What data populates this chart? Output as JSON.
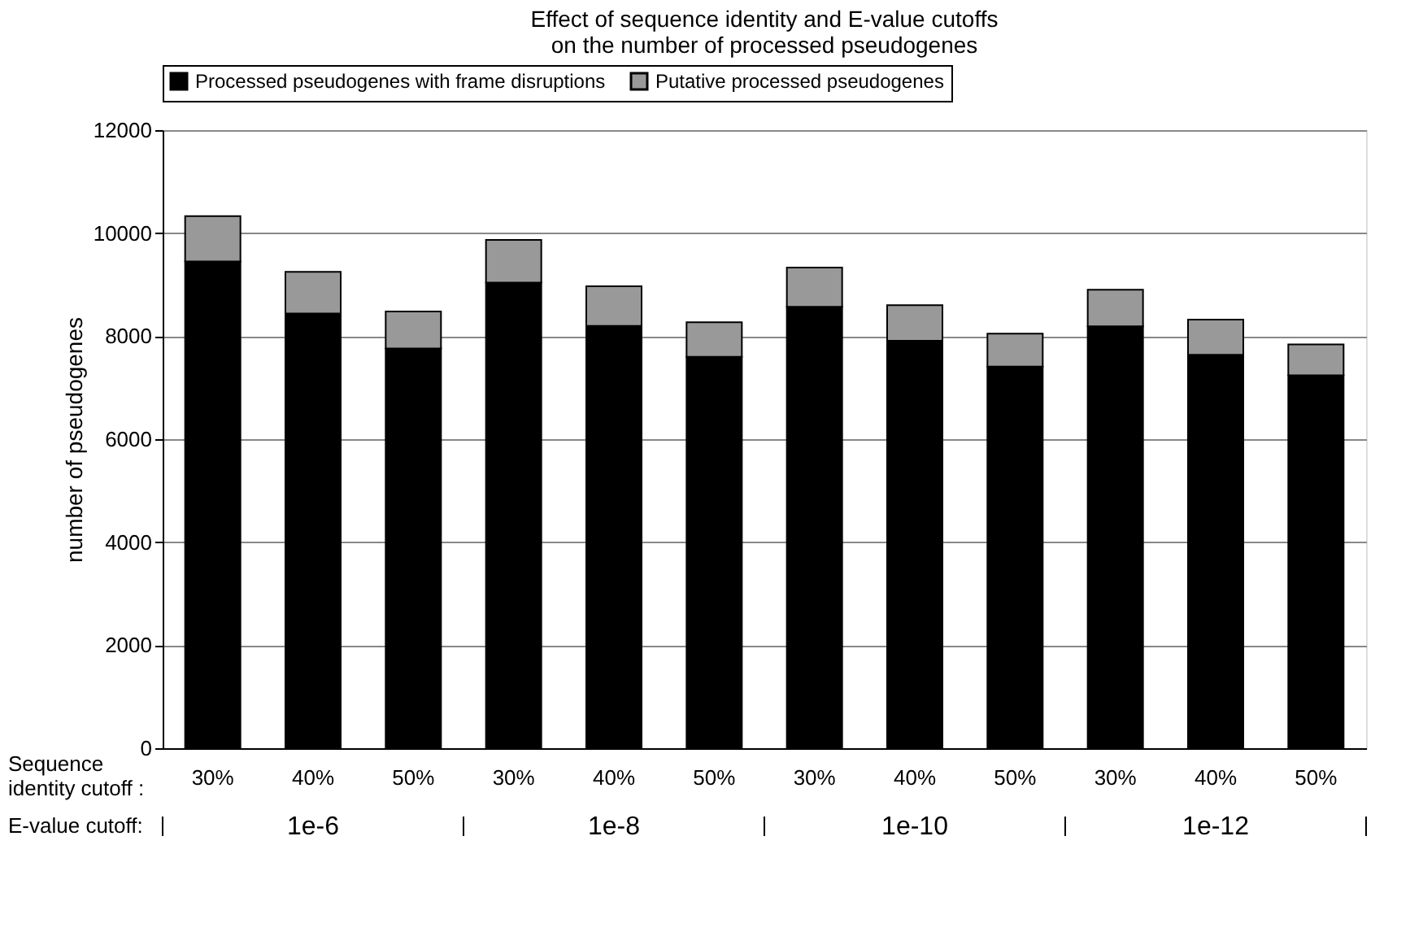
{
  "chart_data": {
    "type": "bar",
    "title": "Effect of sequence identity and E-value cutoffs\non the number of processed pseudogenes",
    "xlabel": "Sequence identity cutoff :",
    "ylabel": "number of pseudogenes",
    "categories": [
      "30%",
      "40%",
      "50%",
      "30%",
      "40%",
      "50%",
      "30%",
      "40%",
      "50%",
      "30%",
      "40%",
      "50%"
    ],
    "series": [
      {
        "name": "Processed pseudogenes with frame disruptions",
        "color": "#000000",
        "values": [
          9450,
          8440,
          7760,
          9040,
          8200,
          7600,
          8570,
          7910,
          7410,
          8190,
          7640,
          7240
        ]
      },
      {
        "name": "Putative processed pseudogenes",
        "color": "#999999",
        "values": [
          880,
          810,
          720,
          830,
          770,
          670,
          760,
          690,
          640,
          710,
          680,
          600
        ]
      }
    ],
    "stacked": true,
    "ylim": [
      0,
      12000
    ],
    "yticks": [
      0,
      2000,
      4000,
      6000,
      8000,
      10000,
      12000
    ],
    "grid": "y",
    "legend": "top",
    "annotations": [
      "E-value cutoff:",
      "1e-6",
      "1e-8",
      "1e-10",
      "1e-12"
    ]
  }
}
